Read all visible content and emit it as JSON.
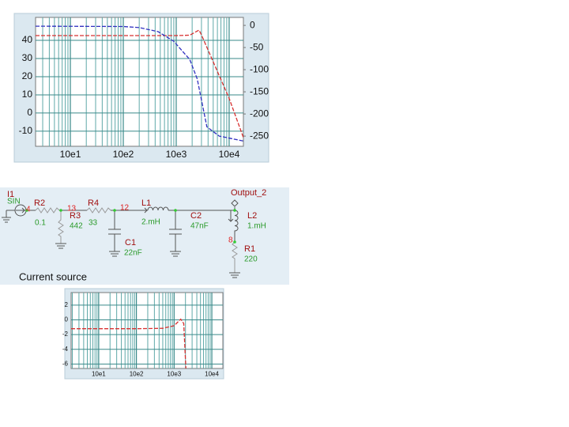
{
  "chart_data": [
    {
      "type": "line",
      "log_x": true,
      "grid": true,
      "minor_grid": true,
      "xlim": [
        2.2,
        18600
      ],
      "xticks": [
        {
          "value": 10,
          "label": "10e1"
        },
        {
          "value": 100,
          "label": "10e2"
        },
        {
          "value": 1000,
          "label": "10e3"
        },
        {
          "value": 10000,
          "label": "10e4"
        }
      ],
      "ylim": [
        -18.3,
        52.6
      ],
      "yticks": [
        -10,
        0,
        10,
        20,
        30,
        40
      ],
      "y2lim": [
        -273,
        18
      ],
      "y2ticks": [
        -250,
        -200,
        -150,
        -100,
        -50,
        0
      ],
      "series": [
        {
          "color": "#d83030",
          "x": [
            2.2,
            100,
            1000,
            1800,
            2300,
            2700,
            3000,
            10000,
            18600
          ],
          "values": [
            42.6,
            42.6,
            42.6,
            42.8,
            44.5,
            45.6,
            43,
            8,
            -13.5
          ]
        },
        {
          "color": "#3030c0",
          "axis": "y2",
          "x": [
            2.2,
            100,
            200,
            450,
            900,
            1800,
            2500,
            3300,
            3800,
            6500,
            18600
          ],
          "values": [
            -1.8,
            -2.5,
            -5,
            -14,
            -36,
            -77,
            -121,
            -193,
            -229,
            -250,
            -261
          ]
        }
      ]
    },
    {
      "type": "line",
      "log_x": true,
      "grid": true,
      "minor_grid": true,
      "xlim": [
        1.86,
        19600
      ],
      "xticks": [
        {
          "value": 10,
          "label": "10e1"
        },
        {
          "value": 100,
          "label": "10e2"
        },
        {
          "value": 1000,
          "label": "10e3"
        },
        {
          "value": 10000,
          "label": "10e4"
        }
      ],
      "ylim": [
        -6.6,
        3.7
      ],
      "yticks": [
        -6,
        -4,
        -2,
        0,
        2
      ],
      "series": [
        {
          "color": "#d83030",
          "x": [
            1.86,
            100,
            500,
            1000,
            1500,
            1800,
            2050
          ],
          "values": [
            -1.2,
            -1.2,
            -1.15,
            -0.8,
            0.1,
            -0.5,
            -6.6
          ]
        }
      ]
    }
  ],
  "schematic": {
    "components": [
      {
        "name": "I1",
        "value": "SIN"
      },
      {
        "name": "R2",
        "value": "0.1"
      },
      {
        "name": "R3",
        "value": "442"
      },
      {
        "name": "R4",
        "value": "33"
      },
      {
        "name": "L1",
        "value": "2.mH"
      },
      {
        "name": "C1",
        "value": "22nF"
      },
      {
        "name": "C2",
        "value": "47nF"
      },
      {
        "name": "L2",
        "value": "1.mH"
      },
      {
        "name": "R1",
        "value": "220"
      }
    ],
    "nodes": [
      "4",
      "13",
      "12",
      "8"
    ],
    "output": "Output_2",
    "caption": "Current source"
  }
}
